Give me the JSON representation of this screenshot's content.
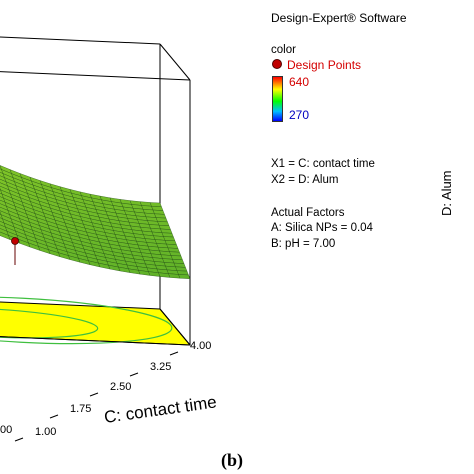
{
  "software_title": "Design-Expert® Software",
  "legend": {
    "color_header": "color",
    "design_points_label": "Design Points",
    "color_max": "640",
    "color_min": "270",
    "x1_line": "X1 = C: contact time",
    "x2_line": "X2 = D: Alum",
    "actual_factors_header": "Actual Factors",
    "factor_a": "A: Silica NPs = 0.04",
    "factor_b": "B: pH = 7.00"
  },
  "panel_label": "(b)",
  "colors": {
    "surface": "#8fcf3a",
    "mesh": "#1e4a10",
    "contour_plane": "#ffff00",
    "contour_line": "#3fbf3f",
    "design_point": "#c00000"
  },
  "chart_data": {
    "type": "surface3d",
    "xlabel": "C: contact time",
    "ylabel": "D: Alum",
    "x_ticks": [
      "1.00",
      "1.75",
      "2.50",
      "3.25",
      "4.00"
    ],
    "x_range": [
      1.0,
      4.0
    ],
    "partial_tick_labels": [
      "00"
    ],
    "design_points": [
      {
        "x": 1.0
      }
    ],
    "color_range": [
      270,
      640
    ]
  }
}
